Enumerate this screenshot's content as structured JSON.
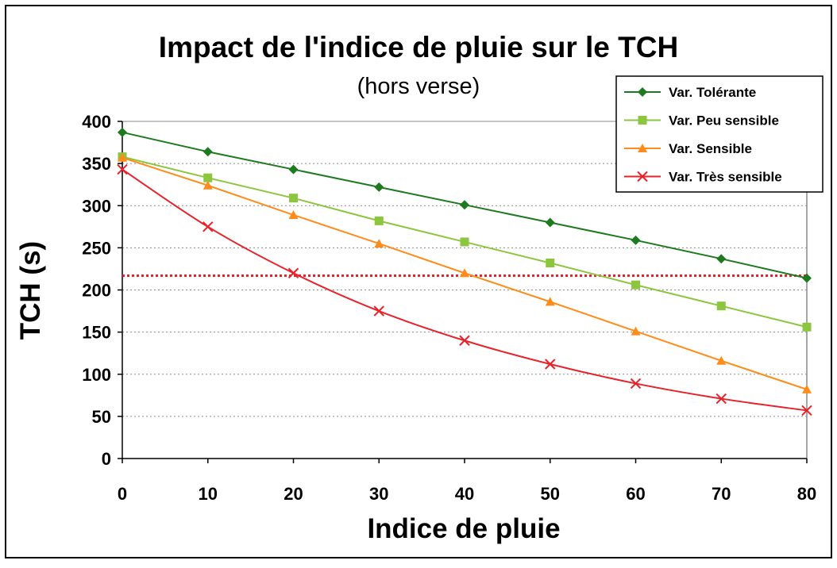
{
  "chart_data": {
    "type": "line",
    "title": "Impact de l'indice de pluie sur le TCH",
    "subtitle": "(hors verse)",
    "xlabel": "Indice de pluie",
    "ylabel": "TCH (s)",
    "x": [
      0,
      10,
      20,
      30,
      40,
      50,
      60,
      70,
      80
    ],
    "xlim": [
      0,
      80
    ],
    "ylim": [
      0,
      400
    ],
    "xticks": [
      "0",
      "10",
      "20",
      "30",
      "40",
      "50",
      "60",
      "70",
      "80"
    ],
    "yticks": [
      "0",
      "50",
      "100",
      "150",
      "200",
      "250",
      "300",
      "350",
      "400"
    ],
    "grid": "horizontal dotted",
    "legend_position": "top-right",
    "series": [
      {
        "name": "Var. Tolérante",
        "color": "#1e7a1e",
        "marker": "diamond",
        "values": [
          387,
          364,
          343,
          322,
          301,
          280,
          259,
          237,
          214
        ]
      },
      {
        "name": "Var. Peu sensible",
        "color": "#8cc63f",
        "marker": "square",
        "values": [
          358,
          333,
          309,
          282,
          257,
          232,
          206,
          181,
          156
        ]
      },
      {
        "name": "Var. Sensible",
        "color": "#ff8c1a",
        "marker": "triangle",
        "values": [
          357,
          324,
          289,
          255,
          220,
          186,
          151,
          116,
          82
        ]
      },
      {
        "name": "Var. Très sensible",
        "color": "#e8222a",
        "marker": "cross",
        "values": [
          343,
          275,
          220,
          175,
          140,
          112,
          89,
          71,
          57
        ]
      }
    ],
    "reference_line": {
      "y": 217,
      "color": "#e8222a",
      "style": "dotted"
    }
  }
}
